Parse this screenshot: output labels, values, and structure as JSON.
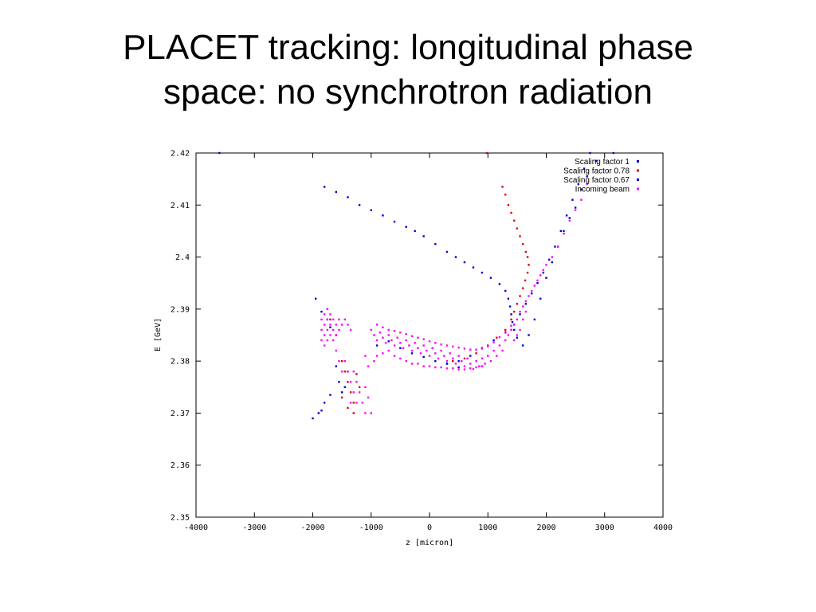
{
  "slide": {
    "title_line1": "PLACET tracking: longitudinal phase",
    "title_line2": "space: no synchrotron radiation"
  },
  "chart_data": {
    "type": "scatter",
    "title": "",
    "xlabel": "z [micron]",
    "ylabel": "E [GeV]",
    "xlim": [
      -4000,
      4000
    ],
    "ylim": [
      2.35,
      2.42
    ],
    "x_ticks": [
      "-4000",
      "-3000",
      "-2000",
      "-1000",
      "0",
      "1000",
      "2000",
      "3000",
      "4000"
    ],
    "y_ticks": [
      "2.35",
      "2.36",
      "2.37",
      "2.38",
      "2.39",
      "2.4",
      "2.41",
      "2.42"
    ],
    "x_tick_values": [
      -4000,
      -3000,
      -2000,
      -1000,
      0,
      1000,
      2000,
      3000,
      4000
    ],
    "y_tick_values": [
      2.35,
      2.36,
      2.37,
      2.38,
      2.39,
      2.4,
      2.41,
      2.42
    ],
    "grid": false,
    "legend_position": "top-right",
    "series": [
      {
        "name": "Scaling factor 1",
        "color": "#0000cc",
        "points": [
          [
            -3600,
            2.42
          ],
          [
            -1800,
            2.4135
          ],
          [
            -1600,
            2.4125
          ],
          [
            -1400,
            2.4115
          ],
          [
            -1200,
            2.41
          ],
          [
            -1000,
            2.409
          ],
          [
            -800,
            2.408
          ],
          [
            -600,
            2.4068
          ],
          [
            -400,
            2.4058
          ],
          [
            -250,
            2.405
          ],
          [
            -100,
            2.404
          ],
          [
            100,
            2.4025
          ],
          [
            300,
            2.401
          ],
          [
            450,
            2.4
          ],
          [
            600,
            2.399
          ],
          [
            750,
            2.398
          ],
          [
            900,
            2.397
          ],
          [
            1050,
            2.396
          ],
          [
            1200,
            2.3948
          ],
          [
            1300,
            2.3935
          ],
          [
            1350,
            2.392
          ],
          [
            1380,
            2.3905
          ],
          [
            1400,
            2.389
          ],
          [
            1420,
            2.3875
          ],
          [
            1450,
            2.386
          ],
          [
            1500,
            2.3845
          ],
          [
            1600,
            2.383
          ],
          [
            1700,
            2.385
          ],
          [
            1800,
            2.388
          ],
          [
            1900,
            2.392
          ],
          [
            2000,
            2.396
          ],
          [
            2100,
            2.399
          ],
          [
            2200,
            2.402
          ],
          [
            2300,
            2.405
          ],
          [
            2400,
            2.4075
          ],
          [
            2500,
            2.4095
          ],
          [
            2600,
            2.413
          ],
          [
            2700,
            2.4155
          ],
          [
            2850,
            2.4185
          ],
          [
            3150,
            2.42
          ],
          [
            -1950,
            2.392
          ],
          [
            -1850,
            2.3895
          ],
          [
            -1750,
            2.388
          ],
          [
            -1700,
            2.3865
          ],
          [
            -1600,
            2.379
          ],
          [
            -1550,
            2.376
          ],
          [
            -1500,
            2.374
          ],
          [
            -1450,
            2.375
          ],
          [
            -1400,
            2.378
          ],
          [
            -1800,
            2.372
          ],
          [
            -1850,
            2.3705
          ],
          [
            -2000,
            2.369
          ],
          [
            -1900,
            2.37
          ],
          [
            -1700,
            2.3735
          ],
          [
            -900,
            2.383
          ],
          [
            -700,
            2.3838
          ],
          [
            -500,
            2.3825
          ],
          [
            -300,
            2.3815
          ],
          [
            -100,
            2.3808
          ],
          [
            100,
            2.38
          ],
          [
            300,
            2.3795
          ],
          [
            500,
            2.3788
          ],
          [
            700,
            2.3786
          ],
          [
            900,
            2.379
          ]
        ]
      },
      {
        "name": "Scaling factor 0.78",
        "color": "#dd0000",
        "points": [
          [
            980,
            2.42
          ],
          [
            1250,
            2.4135
          ],
          [
            1300,
            2.412
          ],
          [
            1350,
            2.41
          ],
          [
            1400,
            2.4085
          ],
          [
            1450,
            2.407
          ],
          [
            1500,
            2.4055
          ],
          [
            1550,
            2.404
          ],
          [
            1600,
            2.4025
          ],
          [
            1650,
            2.401
          ],
          [
            1680,
            2.4
          ],
          [
            1700,
            2.3985
          ],
          [
            1680,
            2.397
          ],
          [
            1640,
            2.3955
          ],
          [
            1600,
            2.394
          ],
          [
            1550,
            2.3925
          ],
          [
            1500,
            2.391
          ],
          [
            1450,
            2.3895
          ],
          [
            1400,
            2.388
          ],
          [
            1300,
            2.386
          ],
          [
            1150,
            2.3845
          ],
          [
            1000,
            2.383
          ],
          [
            800,
            2.3815
          ],
          [
            600,
            2.3805
          ],
          [
            400,
            2.38
          ],
          [
            -1750,
            2.39
          ],
          [
            -1700,
            2.388
          ],
          [
            -1600,
            2.385
          ],
          [
            -1500,
            2.38
          ],
          [
            -1450,
            2.378
          ],
          [
            -1400,
            2.376
          ],
          [
            -1350,
            2.374
          ],
          [
            -1300,
            2.372
          ],
          [
            -1400,
            2.371
          ],
          [
            -1300,
            2.37
          ],
          [
            -1500,
            2.373
          ],
          [
            -1200,
            2.375
          ],
          [
            -1250,
            2.3775
          ]
        ]
      },
      {
        "name": "Scaling factor 0.67",
        "color": "#0000cc",
        "points": [
          [
            2750,
            2.42
          ],
          [
            2650,
            2.417
          ],
          [
            2550,
            2.414
          ],
          [
            2450,
            2.411
          ],
          [
            2350,
            2.408
          ],
          [
            2250,
            2.405
          ],
          [
            2150,
            2.402
          ],
          [
            2050,
            2.3995
          ],
          [
            1950,
            2.397
          ],
          [
            1850,
            2.395
          ],
          [
            1750,
            2.393
          ],
          [
            1650,
            2.391
          ],
          [
            1550,
            2.389
          ],
          [
            1450,
            2.387
          ],
          [
            1300,
            2.3855
          ],
          [
            1100,
            2.384
          ],
          [
            900,
            2.3825
          ],
          [
            700,
            2.381
          ],
          [
            500,
            2.38
          ],
          [
            300,
            2.3795
          ]
        ]
      },
      {
        "name": "Incoming beam",
        "color": "#ff00ff",
        "points": [
          [
            -1850,
            2.388
          ],
          [
            -1850,
            2.386
          ],
          [
            -1850,
            2.384
          ],
          [
            -1800,
            2.389
          ],
          [
            -1800,
            2.387
          ],
          [
            -1800,
            2.385
          ],
          [
            -1800,
            2.383
          ],
          [
            -1750,
            2.39
          ],
          [
            -1750,
            2.388
          ],
          [
            -1750,
            2.386
          ],
          [
            -1750,
            2.384
          ],
          [
            -1700,
            2.389
          ],
          [
            -1700,
            2.387
          ],
          [
            -1700,
            2.385
          ],
          [
            -1650,
            2.388
          ],
          [
            -1650,
            2.386
          ],
          [
            -1650,
            2.384
          ],
          [
            -1600,
            2.387
          ],
          [
            -1600,
            2.385
          ],
          [
            -1550,
            2.388
          ],
          [
            -1550,
            2.386
          ],
          [
            -1500,
            2.387
          ],
          [
            -1450,
            2.388
          ],
          [
            -1400,
            2.387
          ],
          [
            -1350,
            2.386
          ],
          [
            -1600,
            2.382
          ],
          [
            -1550,
            2.38
          ],
          [
            -1500,
            2.378
          ],
          [
            -1450,
            2.38
          ],
          [
            -1400,
            2.378
          ],
          [
            -1350,
            2.376
          ],
          [
            -1300,
            2.378
          ],
          [
            -1250,
            2.376
          ],
          [
            -1200,
            2.374
          ],
          [
            -1150,
            2.372
          ],
          [
            -1100,
            2.37
          ],
          [
            -1300,
            2.374
          ],
          [
            -1350,
            2.372
          ],
          [
            -1250,
            2.372
          ],
          [
            -1100,
            2.375
          ],
          [
            -1000,
            2.37
          ],
          [
            -1050,
            2.373
          ],
          [
            -1050,
            2.379
          ],
          [
            -1100,
            2.381
          ],
          [
            -1000,
            2.386
          ],
          [
            -950,
            2.385
          ],
          [
            -900,
            2.384
          ],
          [
            -850,
            2.3855
          ],
          [
            -800,
            2.3845
          ],
          [
            -750,
            2.3835
          ],
          [
            -700,
            2.385
          ],
          [
            -650,
            2.384
          ],
          [
            -600,
            2.383
          ],
          [
            -550,
            2.3845
          ],
          [
            -500,
            2.3835
          ],
          [
            -450,
            2.3825
          ],
          [
            -400,
            2.384
          ],
          [
            -350,
            2.383
          ],
          [
            -300,
            2.382
          ],
          [
            -250,
            2.3835
          ],
          [
            -200,
            2.3825
          ],
          [
            -150,
            2.3815
          ],
          [
            -100,
            2.383
          ],
          [
            -50,
            2.382
          ],
          [
            0,
            2.381
          ],
          [
            50,
            2.3825
          ],
          [
            100,
            2.3815
          ],
          [
            150,
            2.3805
          ],
          [
            200,
            2.382
          ],
          [
            250,
            2.381
          ],
          [
            300,
            2.38
          ],
          [
            350,
            2.3815
          ],
          [
            400,
            2.3805
          ],
          [
            450,
            2.3795
          ],
          [
            500,
            2.381
          ],
          [
            550,
            2.38
          ],
          [
            600,
            2.379
          ],
          [
            650,
            2.3805
          ],
          [
            700,
            2.3795
          ],
          [
            750,
            2.3785
          ],
          [
            800,
            2.38
          ],
          [
            850,
            2.379
          ],
          [
            900,
            2.3805
          ],
          [
            950,
            2.3795
          ],
          [
            1000,
            2.381
          ],
          [
            1050,
            2.38
          ],
          [
            1100,
            2.382
          ],
          [
            1150,
            2.381
          ],
          [
            1200,
            2.383
          ],
          [
            1250,
            2.382
          ],
          [
            1300,
            2.384
          ],
          [
            1350,
            2.385
          ],
          [
            1400,
            2.386
          ],
          [
            1450,
            2.387
          ],
          [
            1500,
            2.388
          ],
          [
            1550,
            2.3895
          ],
          [
            1600,
            2.3905
          ],
          [
            1650,
            2.3915
          ],
          [
            1700,
            2.3925
          ],
          [
            1750,
            2.3935
          ],
          [
            1800,
            2.3945
          ],
          [
            1850,
            2.3955
          ],
          [
            1900,
            2.3965
          ],
          [
            1950,
            2.3975
          ],
          [
            2000,
            2.3985
          ],
          [
            2100,
            2.4
          ],
          [
            2200,
            2.402
          ],
          [
            2300,
            2.4045
          ],
          [
            2400,
            2.407
          ],
          [
            2500,
            2.409
          ],
          [
            2600,
            2.411
          ],
          [
            2700,
            2.414
          ],
          [
            -950,
            2.38
          ],
          [
            -900,
            2.381
          ],
          [
            -800,
            2.3815
          ],
          [
            -700,
            2.382
          ],
          [
            -600,
            2.381
          ],
          [
            -500,
            2.3805
          ],
          [
            -400,
            2.38
          ],
          [
            -300,
            2.3795
          ],
          [
            -200,
            2.3795
          ],
          [
            -100,
            2.379
          ],
          [
            0,
            2.379
          ],
          [
            100,
            2.3788
          ],
          [
            200,
            2.3788
          ],
          [
            300,
            2.3786
          ],
          [
            400,
            2.3786
          ],
          [
            500,
            2.3784
          ],
          [
            600,
            2.3784
          ],
          [
            700,
            2.3786
          ],
          [
            800,
            2.3788
          ],
          [
            900,
            2.379
          ],
          [
            -900,
            2.387
          ],
          [
            -800,
            2.3865
          ],
          [
            -700,
            2.386
          ],
          [
            -600,
            2.3858
          ],
          [
            -500,
            2.3855
          ],
          [
            -400,
            2.3852
          ],
          [
            -300,
            2.3848
          ],
          [
            -200,
            2.3845
          ],
          [
            -100,
            2.3842
          ],
          [
            0,
            2.3838
          ],
          [
            100,
            2.3835
          ],
          [
            200,
            2.3832
          ],
          [
            300,
            2.383
          ],
          [
            400,
            2.3828
          ],
          [
            500,
            2.3826
          ],
          [
            600,
            2.3824
          ],
          [
            700,
            2.3822
          ],
          [
            800,
            2.3822
          ],
          [
            900,
            2.3824
          ],
          [
            1000,
            2.3828
          ],
          [
            1100,
            2.3836
          ],
          [
            1200,
            2.3846
          ],
          [
            1300,
            2.3856
          ],
          [
            1400,
            2.3868
          ],
          [
            1500,
            2.385
          ],
          [
            1450,
            2.384
          ],
          [
            1550,
            2.386
          ],
          [
            1600,
            2.388
          ],
          [
            1650,
            2.3895
          ]
        ]
      }
    ]
  }
}
